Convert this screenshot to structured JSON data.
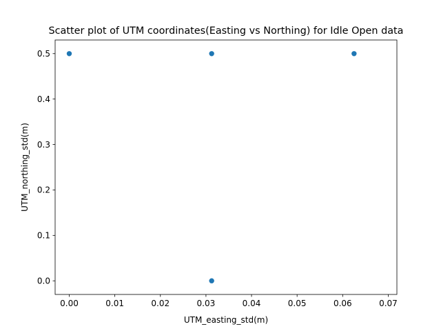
{
  "chart_data": {
    "type": "scatter",
    "title": "Scatter plot of UTM coordinates(Easting vs Northing) for Idle Open data",
    "xlabel": "UTM_easting_std(m)",
    "ylabel": "UTM_northing_std(m)",
    "xlim": [
      -0.0031,
      0.0719
    ],
    "ylim": [
      -0.03,
      0.53
    ],
    "x_ticks": [
      0.0,
      0.01,
      0.02,
      0.03,
      0.04,
      0.05,
      0.06,
      0.07
    ],
    "x_tick_labels": [
      "0.00",
      "0.01",
      "0.02",
      "0.03",
      "0.04",
      "0.05",
      "0.06",
      "0.07"
    ],
    "y_ticks": [
      0.0,
      0.1,
      0.2,
      0.3,
      0.4,
      0.5
    ],
    "y_tick_labels": [
      "0.0",
      "0.1",
      "0.2",
      "0.3",
      "0.4",
      "0.5"
    ],
    "grid": false,
    "marker_color": "#1f77b4",
    "series": [
      {
        "points": [
          {
            "x": 0.0,
            "y": 0.5
          },
          {
            "x": 0.03125,
            "y": 0.5
          },
          {
            "x": 0.0625,
            "y": 0.5
          },
          {
            "x": 0.03125,
            "y": 0.0
          }
        ]
      }
    ]
  }
}
